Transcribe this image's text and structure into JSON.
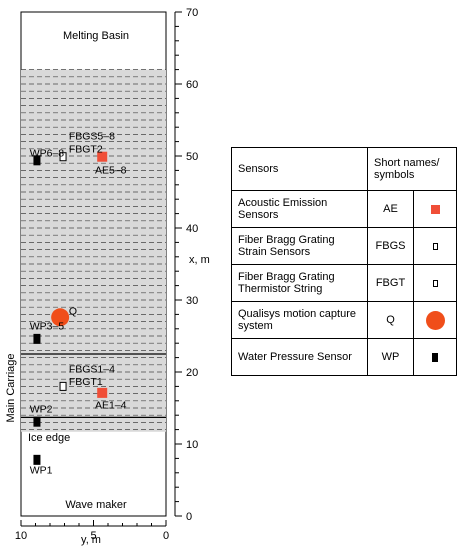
{
  "diagram": {
    "basin_top_label": "Melting Basin",
    "basin_bottom_label": "Wave maker",
    "carriage_label": "Main Carriage",
    "ice_edge_label": "Ice edge",
    "x_axis_label": "x, m",
    "y_axis_label": "y, m",
    "x_ticks": [
      0,
      10,
      20,
      30,
      40,
      50,
      60,
      70
    ],
    "y_ticks": [
      10,
      5,
      0
    ],
    "ice_sheet": {
      "x_start": 11.7,
      "x_end": 62.0,
      "line_spacing": 1.0
    },
    "carriage_lines_x": [
      22.5,
      13.7
    ],
    "colors": {
      "ice": "#d9d9d9",
      "ae": "#f04e37",
      "q": "#f04e1a",
      "wp": "#000000"
    },
    "labels": [
      {
        "name": "label-wp6-8",
        "text": "WP6–8",
        "x": 49.9,
        "y": 9.4
      },
      {
        "name": "label-fbgs5-8",
        "text": "FBGS5–8",
        "x": 52.3,
        "y": 6.7
      },
      {
        "name": "label-fbgt2",
        "text": "FBGT2",
        "x": 50.5,
        "y": 6.7
      },
      {
        "name": "label-ae5-8",
        "text": "AE5–8",
        "x": 47.6,
        "y": 4.9
      },
      {
        "name": "label-q",
        "text": "Q",
        "x": 28.0,
        "y": 6.7
      },
      {
        "name": "label-wp3-5",
        "text": "WP3–5",
        "x": 25.9,
        "y": 9.4
      },
      {
        "name": "label-fbgs1-4",
        "text": "FBGS1–4",
        "x": 19.9,
        "y": 6.7
      },
      {
        "name": "label-fbgt1",
        "text": "FBGT1",
        "x": 18.2,
        "y": 6.7
      },
      {
        "name": "label-ae1-4",
        "text": "AE1–4",
        "x": 14.9,
        "y": 4.9
      },
      {
        "name": "label-wp2",
        "text": "WP2",
        "x": 14.4,
        "y": 9.4
      },
      {
        "name": "label-wp1",
        "text": "WP1",
        "x": 5.9,
        "y": 9.4
      }
    ],
    "sensors": [
      {
        "name": "wp6-8-marker",
        "type": "wp",
        "x": 49.4,
        "y": 8.9
      },
      {
        "name": "fbgs5-8-marker",
        "type": "fb",
        "x": 49.9,
        "y": 7.1
      },
      {
        "name": "ae5-8-marker",
        "type": "ae",
        "x": 49.9,
        "y": 4.4
      },
      {
        "name": "q-marker",
        "type": "q",
        "x": 27.6,
        "y": 7.3
      },
      {
        "name": "wp3-5-marker",
        "type": "wp",
        "x": 24.6,
        "y": 8.9
      },
      {
        "name": "fbgs1-4-marker",
        "type": "fb",
        "x": 18.0,
        "y": 7.1
      },
      {
        "name": "ae1-4-marker",
        "type": "ae",
        "x": 17.1,
        "y": 4.4
      },
      {
        "name": "wp2-marker",
        "type": "wp",
        "x": 13.1,
        "y": 8.9
      },
      {
        "name": "wp1-marker",
        "type": "wp",
        "x": 7.8,
        "y": 8.9
      }
    ]
  },
  "legend": {
    "header_sensors": "Sensors",
    "header_short_names": "Short names/ symbols",
    "rows": [
      {
        "name": "Acoustic Emission Sensors",
        "short": "AE",
        "symbol": "ae"
      },
      {
        "name": "Fiber Bragg Grating Strain Sensors",
        "short": "FBGS",
        "symbol": "fb"
      },
      {
        "name": "Fiber Bragg Grating Thermistor String",
        "short": "FBGT",
        "symbol": "fb"
      },
      {
        "name": "Qualisys motion capture system",
        "short": "Q",
        "symbol": "q"
      },
      {
        "name": "Water Pressure Sensor",
        "short": "WP",
        "symbol": "wp"
      }
    ]
  }
}
